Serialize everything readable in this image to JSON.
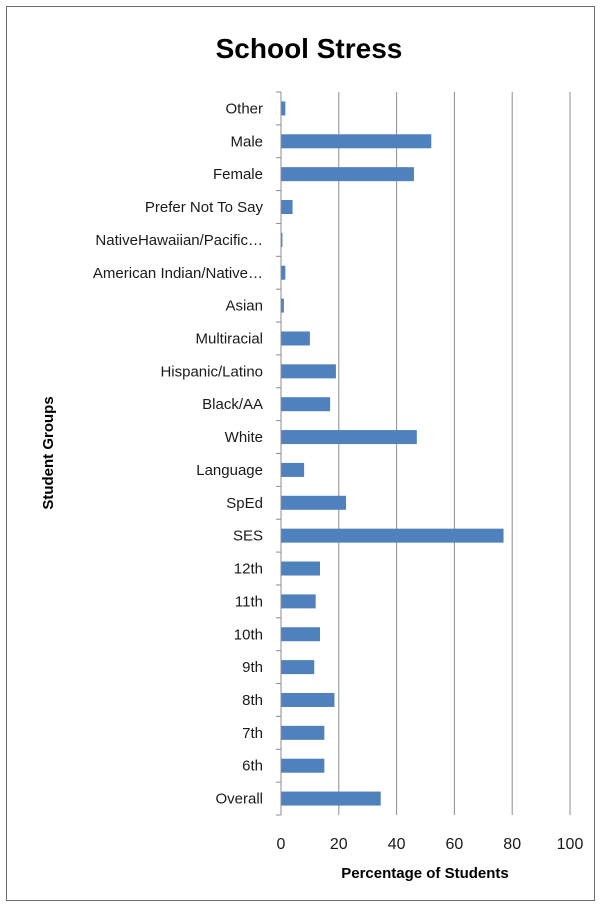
{
  "chart_data": {
    "type": "bar",
    "orientation": "horizontal",
    "title": "School Stress",
    "xlabel": "Percentage of Students",
    "ylabel": "Student Groups",
    "xlim": [
      0,
      100
    ],
    "xticks": [
      "0",
      "20",
      "40",
      "60",
      "80",
      "100"
    ],
    "grid": true,
    "legend": "none",
    "bar_color": "#4f81bd",
    "categories": [
      "Other",
      "Male",
      "Female",
      "Prefer Not To Say",
      "NativeHawaiian/Pacific…",
      "American Indian/Native…",
      "Asian",
      "Multiracial",
      "Hispanic/Latino",
      "Black/AA",
      "White",
      "Language",
      "SpEd",
      "SES",
      "12th",
      "11th",
      "10th",
      "9th",
      "8th",
      "7th",
      "6th",
      "Overall"
    ],
    "values": [
      1.5,
      52,
      46,
      4,
      0.5,
      1.5,
      1,
      10,
      19,
      17,
      47,
      8,
      22.5,
      77,
      13.5,
      12,
      13.5,
      11.5,
      18.5,
      15,
      15,
      34.5
    ]
  }
}
